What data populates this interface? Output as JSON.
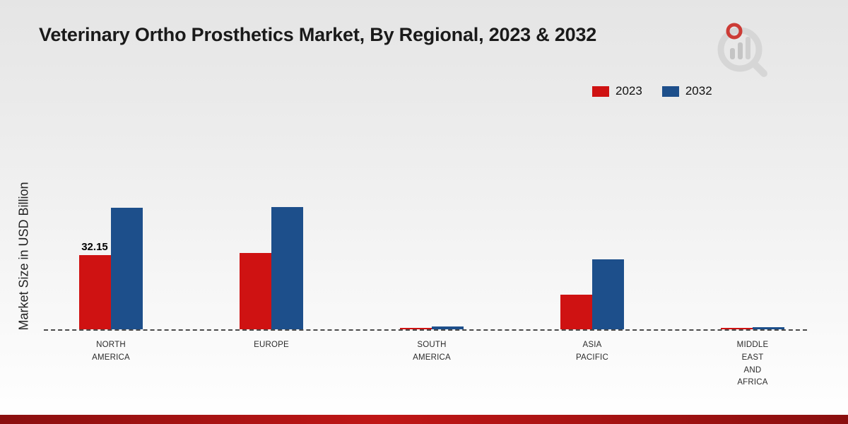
{
  "title": "Veterinary Ortho Prosthetics Market, By Regional, 2023 & 2032",
  "ylabel": "Market Size in USD Billion",
  "legend": [
    {
      "label": "2023",
      "color": "#cf1212"
    },
    {
      "label": "2032",
      "color": "#1d4f8b"
    }
  ],
  "chart_data": {
    "type": "bar",
    "title": "Veterinary Ortho Prosthetics Market, By Regional, 2023 & 2032",
    "xlabel": "",
    "ylabel": "Market Size in USD Billion",
    "categories": [
      "NORTH AMERICA",
      "EUROPE",
      "SOUTH AMERICA",
      "ASIA PACIFIC",
      "MIDDLE EAST AND AFRICA"
    ],
    "series": [
      {
        "name": "2023",
        "color": "#cf1212",
        "values": [
          32.15,
          33.0,
          0.6,
          15.0,
          0.45
        ]
      },
      {
        "name": "2032",
        "color": "#1d4f8b",
        "values": [
          52.7,
          53.0,
          1.2,
          30.3,
          0.9
        ]
      }
    ],
    "annotations": [
      {
        "category_index": 0,
        "series_index": 0,
        "text": "32.15"
      }
    ],
    "ylim": [
      0,
      60
    ],
    "grid": false,
    "baseline_dashed": true,
    "legend_position": "top-right"
  },
  "colors": {
    "series_2023": "#cf1212",
    "series_2032": "#1d4f8b",
    "bottom_strip": "#9b1111"
  }
}
